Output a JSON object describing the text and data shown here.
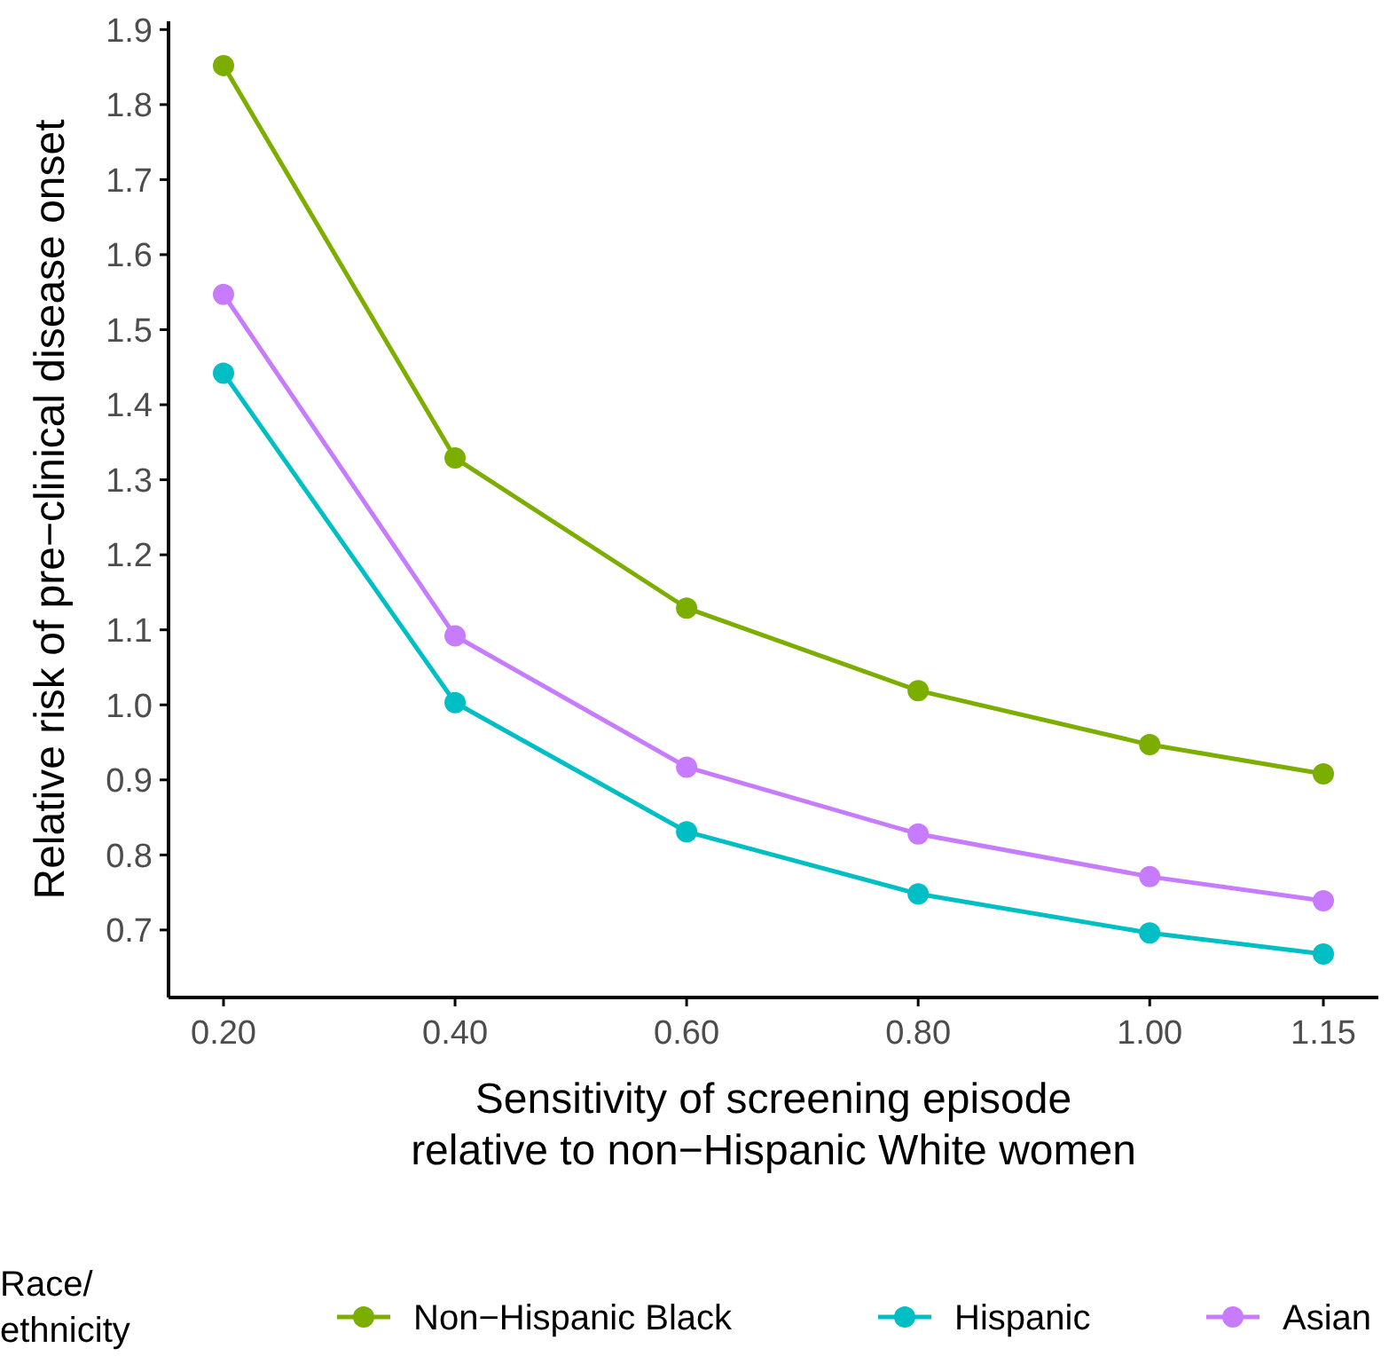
{
  "chart_data": {
    "type": "line",
    "xlabel": "Sensitivity of screening episode\nrelative to non−Hispanic White women",
    "ylabel": "Relative risk of pre−clinical disease onset",
    "legend_title": "Race/\nethnicity",
    "x": [
      0.2,
      0.4,
      0.6,
      0.8,
      1.0,
      1.15
    ],
    "xlim": [
      0.1525,
      1.1975
    ],
    "xticks": [
      {
        "value": 0.2,
        "label": "0.20"
      },
      {
        "value": 0.4,
        "label": "0.40"
      },
      {
        "value": 0.6,
        "label": "0.60"
      },
      {
        "value": 0.8,
        "label": "0.80"
      },
      {
        "value": 1.0,
        "label": "1.00"
      },
      1.15
    ],
    "ylim": [
      0.61,
      1.911
    ],
    "yticks": [
      0.7,
      0.8,
      0.9,
      {
        "value": 1.0,
        "label": "1.0"
      },
      1.1,
      1.2,
      1.3,
      1.4,
      1.5,
      1.6,
      1.7,
      1.8,
      1.9
    ],
    "series": [
      {
        "name": "Non−Hispanic Black",
        "color": "#7cae00",
        "values": [
          1.852,
          1.329,
          1.129,
          1.019,
          0.947,
          0.908
        ]
      },
      {
        "name": "Hispanic",
        "color": "#00bfc4",
        "values": [
          1.442,
          1.003,
          0.831,
          0.748,
          0.696,
          0.668
        ]
      },
      {
        "name": "Asian",
        "color": "#c77cff",
        "values": [
          1.547,
          1.092,
          0.917,
          0.828,
          0.771,
          0.739
        ]
      }
    ],
    "grid": false,
    "legend": "bottom",
    "marker": "circle",
    "line_style": "solid"
  }
}
